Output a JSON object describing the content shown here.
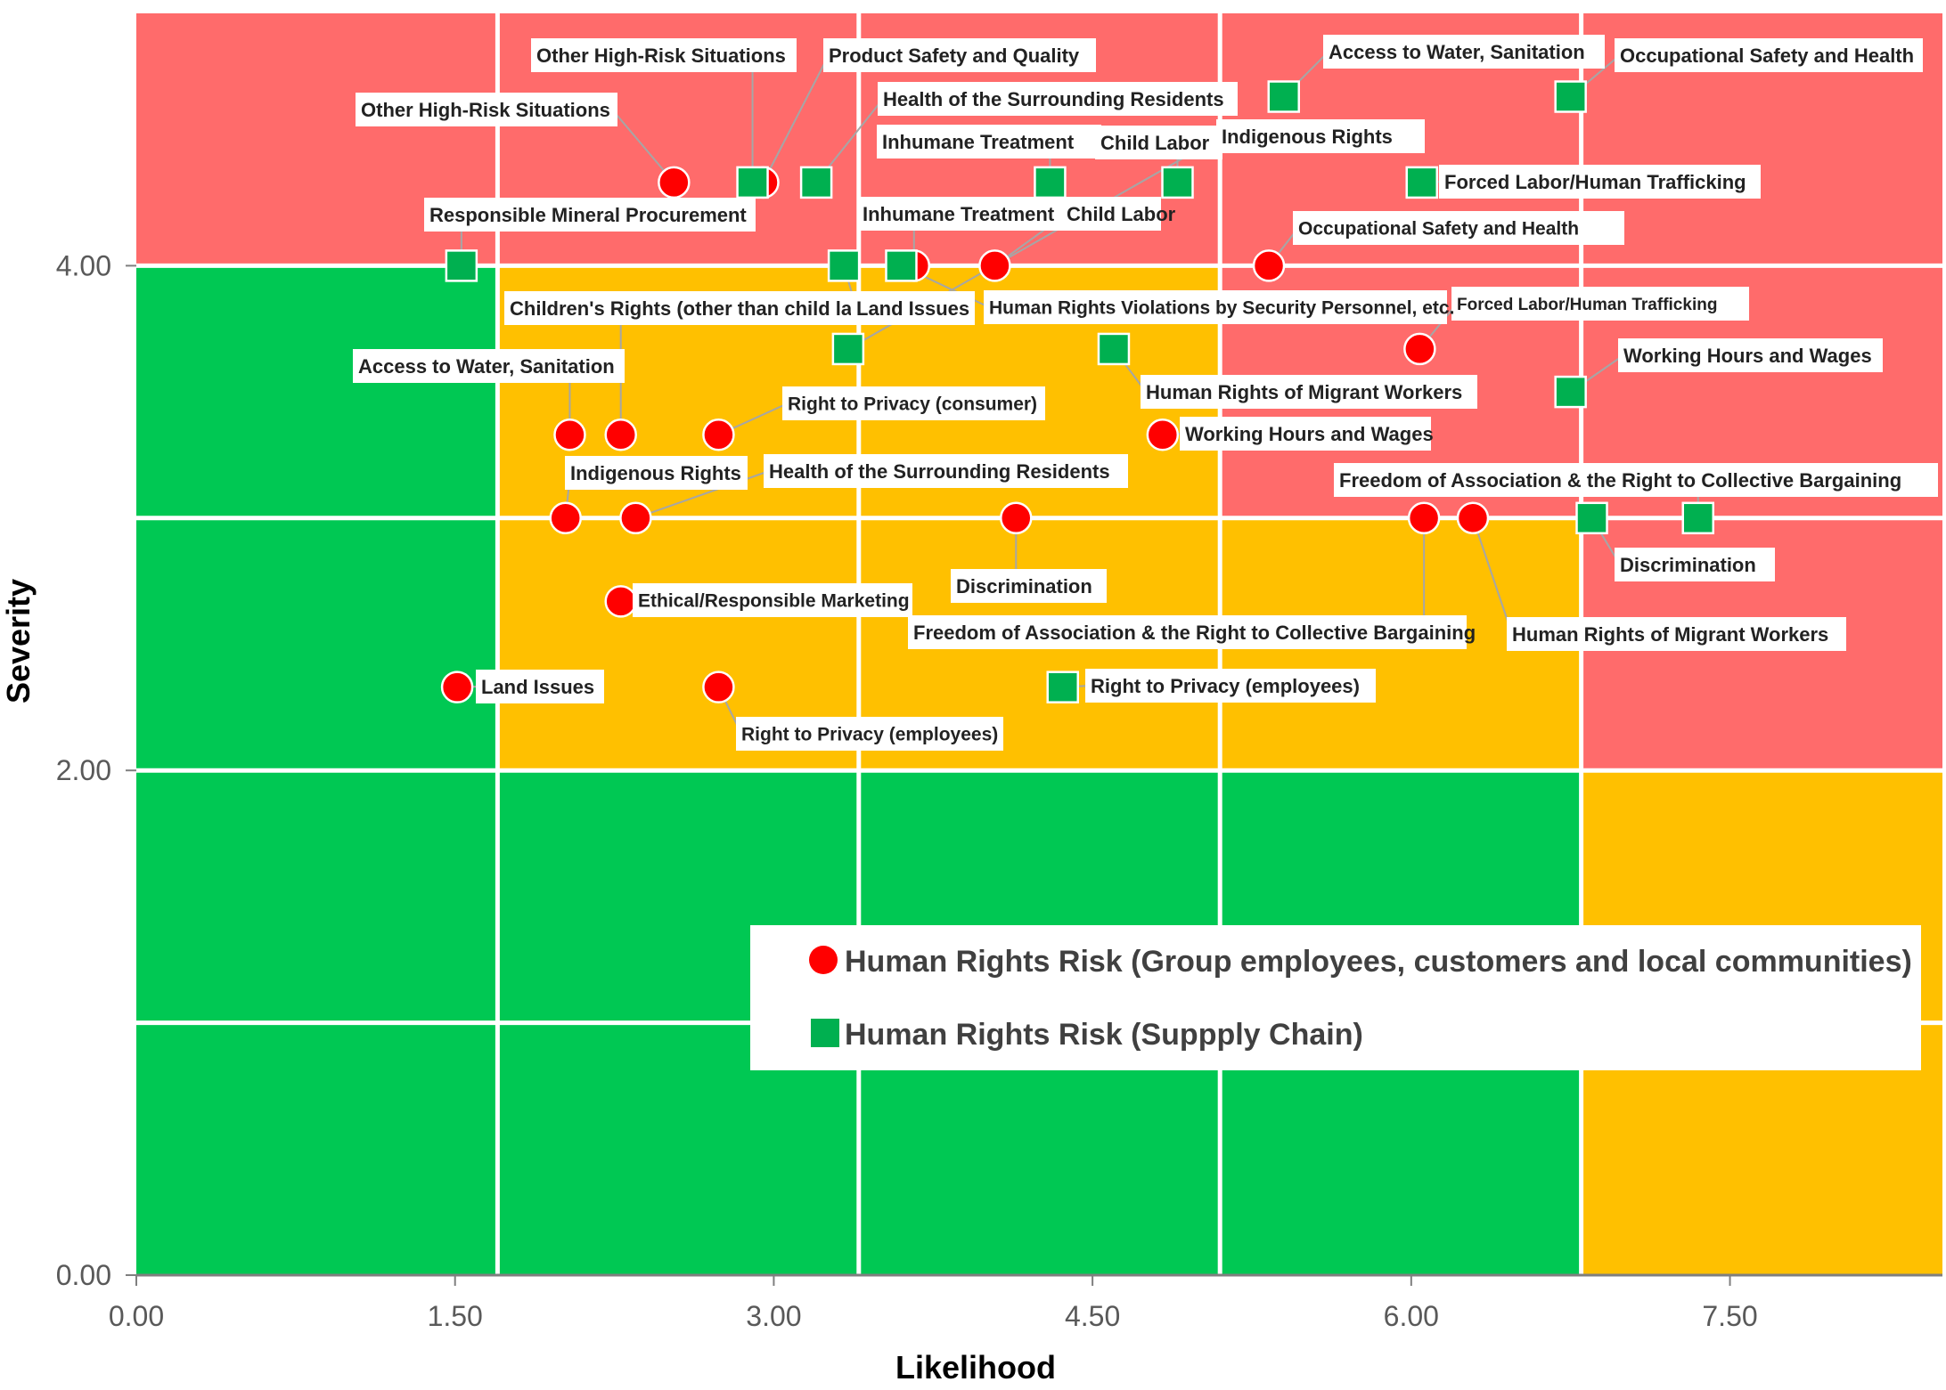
{
  "chart_data": {
    "type": "scatter",
    "title": "",
    "xlabel": "Likelihood",
    "ylabel": "Severity",
    "xlim": [
      0,
      8.5
    ],
    "ylim": [
      0,
      5
    ],
    "x_ticks": [
      "0.00",
      "1.50",
      "3.00",
      "4.50",
      "6.00",
      "7.50"
    ],
    "y_ticks": [
      "0.00",
      "2.00",
      "4.00"
    ],
    "grid": true,
    "legend_position": "bottom-right",
    "colors": {
      "red_zone": "#FF6B6B",
      "yellow_zone": "#FFC000",
      "green_zone": "#00C853",
      "series_1": "#FF0000",
      "series_2": "#00B050"
    },
    "series": [
      {
        "name": "Human Rights Risk (Group employees, customers and local communities)",
        "marker": "circle",
        "points": [
          {
            "x": 2.53,
            "y": 4.33,
            "label": "Other High-Risk Situations"
          },
          {
            "x": 2.95,
            "y": 4.33,
            "label": "Product Safety and Quality"
          },
          {
            "x": 3.66,
            "y": 4.0,
            "label": "Inhumane Treatment"
          },
          {
            "x": 4.04,
            "y": 4.0,
            "label": "Child Labor"
          },
          {
            "x": 5.33,
            "y": 4.0,
            "label": "Occupational Safety and Health"
          },
          {
            "x": 6.04,
            "y": 3.67,
            "label": "Forced Labor/Human Trafficking"
          },
          {
            "x": 2.04,
            "y": 3.33,
            "label": "Access to Water, Sanitation"
          },
          {
            "x": 2.28,
            "y": 3.33,
            "label": "Children's Rights (other than child labor)"
          },
          {
            "x": 2.74,
            "y": 3.33,
            "label": "Right to Privacy (consumer)"
          },
          {
            "x": 4.83,
            "y": 3.33,
            "label": "Working Hours and Wages"
          },
          {
            "x": 2.02,
            "y": 3.0,
            "label": "Indigenous Rights"
          },
          {
            "x": 2.35,
            "y": 3.0,
            "label": "Health of the Surrounding Residents"
          },
          {
            "x": 4.14,
            "y": 3.0,
            "label": "Discrimination"
          },
          {
            "x": 6.06,
            "y": 3.0,
            "label": "Freedom of Association & the Right to Collective Bargaining"
          },
          {
            "x": 6.29,
            "y": 3.0,
            "label": "Human Rights of Migrant Workers"
          },
          {
            "x": 2.28,
            "y": 2.67,
            "label": "Ethical/Responsible Marketing"
          },
          {
            "x": 1.51,
            "y": 2.33,
            "label": "Land Issues"
          },
          {
            "x": 2.74,
            "y": 2.33,
            "label": "Right to Privacy (employees)"
          }
        ]
      },
      {
        "name": "Human Rights Risk (Suppply Chain)",
        "marker": "square",
        "points": [
          {
            "x": 2.9,
            "y": 4.33,
            "label": "Other High-Risk Situations"
          },
          {
            "x": 3.2,
            "y": 4.33,
            "label": "Health of the Surrounding Residents"
          },
          {
            "x": 4.3,
            "y": 4.33,
            "label": "Inhumane Treatment"
          },
          {
            "x": 4.9,
            "y": 4.33,
            "label": "Child Labor"
          },
          {
            "x": 5.4,
            "y": 4.67,
            "label": "Access to Water, Sanitation"
          },
          {
            "x": 6.75,
            "y": 4.67,
            "label": "Occupational Safety and Health"
          },
          {
            "x": 6.05,
            "y": 4.33,
            "label": "Forced Labor/Human Trafficking"
          },
          {
            "x": 1.53,
            "y": 4.0,
            "label": "Responsible Mineral Procurement"
          },
          {
            "x": 3.33,
            "y": 4.0,
            "label": "Land Issues"
          },
          {
            "x": 3.6,
            "y": 4.0,
            "label": "Human Rights Violations by Security Personnel, etc."
          },
          {
            "x": 3.35,
            "y": 3.67,
            "label": "Indigenous Rights"
          },
          {
            "x": 4.6,
            "y": 3.67,
            "label": "Human Rights of Migrant Workers"
          },
          {
            "x": 6.75,
            "y": 3.5,
            "label": "Working Hours and Wages"
          },
          {
            "x": 6.85,
            "y": 3.0,
            "label": "Discrimination"
          },
          {
            "x": 7.35,
            "y": 3.0,
            "label": "Freedom of Association & the Right to Collective Bargaining"
          },
          {
            "x": 4.36,
            "y": 2.33,
            "label": "Right to Privacy (employees)"
          }
        ]
      }
    ]
  }
}
